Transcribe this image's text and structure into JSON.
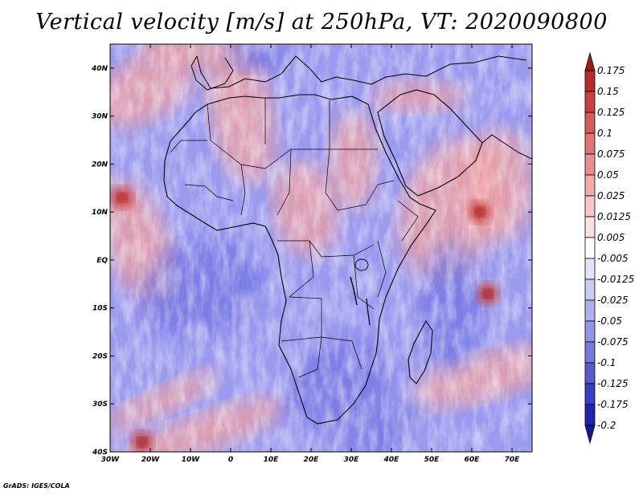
{
  "title": "Vertical velocity [m/s] at 250hPa, VT: 2020090800",
  "credit": "GrADS: IGES/COLA",
  "chart_data": {
    "type": "heatmap",
    "variable": "Vertical velocity",
    "units": "m/s",
    "level": "250hPa",
    "valid_time": "2020090800",
    "xlim": [
      -30,
      75
    ],
    "ylim": [
      -40,
      45
    ],
    "x_ticks": [
      {
        "value": -30,
        "label": "30W"
      },
      {
        "value": -20,
        "label": "20W"
      },
      {
        "value": -10,
        "label": "10W"
      },
      {
        "value": 0,
        "label": "0"
      },
      {
        "value": 10,
        "label": "10E"
      },
      {
        "value": 20,
        "label": "20E"
      },
      {
        "value": 30,
        "label": "30E"
      },
      {
        "value": 40,
        "label": "40E"
      },
      {
        "value": 50,
        "label": "50E"
      },
      {
        "value": 60,
        "label": "60E"
      },
      {
        "value": 70,
        "label": "70E"
      }
    ],
    "y_ticks": [
      {
        "value": 40,
        "label": "40N"
      },
      {
        "value": 30,
        "label": "30N"
      },
      {
        "value": 20,
        "label": "20N"
      },
      {
        "value": 10,
        "label": "10N"
      },
      {
        "value": 0,
        "label": "EQ"
      },
      {
        "value": -10,
        "label": "10S"
      },
      {
        "value": -20,
        "label": "20S"
      },
      {
        "value": -30,
        "label": "30S"
      },
      {
        "value": -40,
        "label": "40S"
      }
    ],
    "colorbar": {
      "levels": [
        {
          "value": 0.175,
          "label": "0.175"
        },
        {
          "value": 0.15,
          "label": "0.15"
        },
        {
          "value": 0.125,
          "label": "0.125"
        },
        {
          "value": 0.1,
          "label": "0.1"
        },
        {
          "value": 0.075,
          "label": "0.075"
        },
        {
          "value": 0.05,
          "label": "0.05"
        },
        {
          "value": 0.025,
          "label": "0.025"
        },
        {
          "value": 0.0125,
          "label": "0.0125"
        },
        {
          "value": 0.005,
          "label": "0.005"
        },
        {
          "value": -0.005,
          "label": "-0.005"
        },
        {
          "value": -0.0125,
          "label": "-0.0125"
        },
        {
          "value": -0.025,
          "label": "-0.025"
        },
        {
          "value": -0.05,
          "label": "-0.05"
        },
        {
          "value": -0.075,
          "label": "-0.075"
        },
        {
          "value": -0.1,
          "label": "-0.1"
        },
        {
          "value": -0.125,
          "label": "-0.125"
        },
        {
          "value": -0.175,
          "label": "-0.175"
        },
        {
          "value": -0.2,
          "label": "-0.2"
        }
      ],
      "colors": [
        "#a01c1c",
        "#b8292b",
        "#c94242",
        "#d65a5a",
        "#e07474",
        "#ea8f8f",
        "#f2aaaa",
        "#f8c6c6",
        "#fce0e0",
        "#ffffff",
        "#e3e3fb",
        "#cacaf5",
        "#b0b0ef",
        "#9494e6",
        "#7878dc",
        "#5a5ad0",
        "#3c3cc4",
        "#2222b0",
        "#16169a"
      ]
    },
    "dominant_field": "mostly weak negative (blue) with streaks of positive (red)",
    "notable_features": [
      {
        "description": "strong upward motion cell",
        "lon": -27,
        "lat": 13
      },
      {
        "description": "strong upward motion cell",
        "lon": 64,
        "lat": -7
      },
      {
        "description": "positive streak",
        "lon": 62,
        "lat": 10
      },
      {
        "description": "positive streak",
        "lon": -22,
        "lat": -38
      }
    ]
  },
  "map": {
    "coastline_color": "#000000",
    "border_color": "#000000"
  }
}
